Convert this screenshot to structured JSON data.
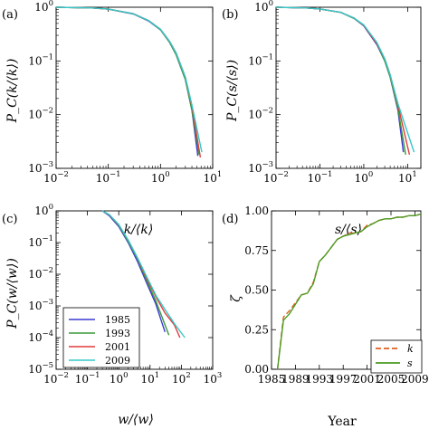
{
  "panels": [
    {
      "label": "(a)",
      "ylabel": "P_C(k/⟨k⟩)",
      "xlabel": "k/⟨k⟩"
    },
    {
      "label": "(b)",
      "ylabel": "P_C(s/⟨s⟩)",
      "xlabel": "s/⟨s⟩"
    },
    {
      "label": "(c)",
      "ylabel": "P_C(w/⟨w⟩)",
      "xlabel": "w/⟨w⟩"
    },
    {
      "label": "(d)",
      "ylabel": "ζ",
      "xlabel": "Year"
    }
  ],
  "legend_c": [
    "1985",
    "1993",
    "2001",
    "2009"
  ],
  "legend_d": [
    "k",
    "s"
  ],
  "colors": {
    "1985": "#3a3ad4",
    "1993": "#3a9a3a",
    "2001": "#e03c3c",
    "2009": "#35c8c8",
    "k": "#e06020",
    "s": "#4a9a20"
  },
  "chart_data": [
    {
      "type": "line",
      "panel": "(a)",
      "xscale": "log",
      "yscale": "log",
      "xlim": [
        0.01,
        10
      ],
      "ylim": [
        0.001,
        1
      ],
      "xticks": [
        "10^-2",
        "10^-1",
        "10^0",
        "10^1"
      ],
      "yticks": [
        "10^-3",
        "10^-2",
        "10^-1",
        "10^0"
      ],
      "series": [
        {
          "name": "1985",
          "x": [
            0.01,
            0.05,
            0.1,
            0.3,
            0.6,
            1,
            1.5,
            2,
            3,
            4,
            5.2
          ],
          "y": [
            1,
            0.97,
            0.92,
            0.75,
            0.55,
            0.38,
            0.22,
            0.13,
            0.045,
            0.012,
            0.0017
          ]
        },
        {
          "name": "1993",
          "x": [
            0.01,
            0.05,
            0.1,
            0.3,
            0.6,
            1,
            1.5,
            2,
            3,
            4,
            5.5
          ],
          "y": [
            1,
            0.97,
            0.92,
            0.76,
            0.56,
            0.38,
            0.22,
            0.13,
            0.045,
            0.012,
            0.0018
          ]
        },
        {
          "name": "2001",
          "x": [
            0.01,
            0.05,
            0.1,
            0.3,
            0.6,
            1,
            1.5,
            2,
            3,
            4,
            5.8
          ],
          "y": [
            1,
            0.97,
            0.92,
            0.76,
            0.56,
            0.39,
            0.23,
            0.14,
            0.05,
            0.014,
            0.0016
          ]
        },
        {
          "name": "2009",
          "x": [
            0.01,
            0.05,
            0.1,
            0.3,
            0.6,
            1,
            1.5,
            2,
            3,
            4,
            6.2
          ],
          "y": [
            1,
            0.97,
            0.92,
            0.76,
            0.56,
            0.39,
            0.23,
            0.14,
            0.05,
            0.015,
            0.002
          ]
        }
      ]
    },
    {
      "type": "line",
      "panel": "(b)",
      "xscale": "log",
      "yscale": "log",
      "xlim": [
        0.01,
        20
      ],
      "ylim": [
        0.001,
        1
      ],
      "xticks": [
        "10^-2",
        "10^-1",
        "10^0",
        "10^1"
      ],
      "yticks": [
        "10^-3",
        "10^-2",
        "10^-1",
        "10^0"
      ],
      "series": [
        {
          "name": "1985",
          "x": [
            0.01,
            0.05,
            0.1,
            0.3,
            0.6,
            1,
            2,
            3,
            4,
            6,
            8
          ],
          "y": [
            1,
            0.97,
            0.93,
            0.8,
            0.62,
            0.45,
            0.2,
            0.1,
            0.05,
            0.012,
            0.002
          ]
        },
        {
          "name": "1993",
          "x": [
            0.01,
            0.05,
            0.1,
            0.3,
            0.6,
            1,
            2,
            3,
            4,
            6,
            9
          ],
          "y": [
            1,
            0.97,
            0.93,
            0.8,
            0.62,
            0.46,
            0.21,
            0.1,
            0.05,
            0.013,
            0.0018
          ]
        },
        {
          "name": "2001",
          "x": [
            0.01,
            0.05,
            0.1,
            0.3,
            0.6,
            1,
            2,
            3,
            4,
            6,
            11
          ],
          "y": [
            1,
            0.97,
            0.93,
            0.8,
            0.63,
            0.46,
            0.21,
            0.11,
            0.055,
            0.015,
            0.0018
          ]
        },
        {
          "name": "2009",
          "x": [
            0.01,
            0.05,
            0.1,
            0.3,
            0.6,
            1,
            2,
            3,
            4,
            6,
            14
          ],
          "y": [
            1,
            0.97,
            0.93,
            0.8,
            0.63,
            0.47,
            0.22,
            0.11,
            0.055,
            0.016,
            0.002
          ]
        }
      ]
    },
    {
      "type": "line",
      "panel": "(c)",
      "xscale": "log",
      "yscale": "log",
      "xlim": [
        0.01,
        1000
      ],
      "ylim": [
        1e-05,
        1
      ],
      "xticks": [
        "10^-2",
        "10^-1",
        "10^0",
        "10^1",
        "10^2",
        "10^3"
      ],
      "yticks": [
        "10^-5",
        "10^-4",
        "10^-3",
        "10^-2",
        "10^-1",
        "10^0"
      ],
      "series": [
        {
          "name": "1985",
          "x": [
            0.3,
            0.5,
            1,
            2,
            4,
            8,
            15,
            30
          ],
          "y": [
            1,
            0.7,
            0.32,
            0.1,
            0.025,
            0.005,
            0.0012,
            0.00015
          ]
        },
        {
          "name": "1993",
          "x": [
            0.3,
            0.5,
            1,
            2,
            4,
            8,
            15,
            25,
            40
          ],
          "y": [
            1,
            0.75,
            0.35,
            0.11,
            0.03,
            0.006,
            0.0015,
            0.0004,
            0.00012
          ]
        },
        {
          "name": "2001",
          "x": [
            0.3,
            0.5,
            1,
            2,
            4,
            8,
            16,
            30,
            60,
            90
          ],
          "y": [
            1,
            0.75,
            0.36,
            0.12,
            0.032,
            0.007,
            0.0018,
            0.0006,
            0.00025,
            0.0001
          ]
        },
        {
          "name": "2009",
          "x": [
            0.3,
            0.5,
            1,
            2,
            4,
            8,
            16,
            32,
            64,
            130
          ],
          "y": [
            1,
            0.76,
            0.37,
            0.12,
            0.033,
            0.008,
            0.002,
            0.0007,
            0.00025,
            0.0001
          ]
        }
      ]
    },
    {
      "type": "line",
      "panel": "(d)",
      "xlim": [
        1985,
        2010
      ],
      "ylim": [
        0,
        1
      ],
      "xticks": [
        "1985",
        "1989",
        "1993",
        "1997",
        "2001",
        "2005",
        "2009"
      ],
      "yticks": [
        "0.00",
        "0.25",
        "0.50",
        "0.75",
        "1.00"
      ],
      "series": [
        {
          "name": "k",
          "x": [
            1986,
            1987,
            1988,
            1989,
            1990,
            1991,
            1992,
            1993,
            1994,
            1995,
            1996,
            1997,
            1998,
            1999,
            2000,
            2001,
            2002,
            2003,
            2004,
            2005,
            2006,
            2007,
            2008,
            2009,
            2010
          ],
          "y": [
            0.0,
            0.33,
            0.37,
            0.42,
            0.47,
            0.48,
            0.55,
            0.68,
            0.72,
            0.77,
            0.82,
            0.84,
            0.86,
            0.86,
            0.87,
            0.91,
            0.92,
            0.94,
            0.95,
            0.95,
            0.96,
            0.96,
            0.97,
            0.97,
            0.98
          ]
        },
        {
          "name": "s",
          "x": [
            1986,
            1987,
            1988,
            1989,
            1990,
            1991,
            1992,
            1993,
            1994,
            1995,
            1996,
            1997,
            1998,
            1999,
            2000,
            2001,
            2002,
            2003,
            2004,
            2005,
            2006,
            2007,
            2008,
            2009,
            2010
          ],
          "y": [
            0.0,
            0.31,
            0.35,
            0.41,
            0.47,
            0.48,
            0.54,
            0.68,
            0.72,
            0.77,
            0.82,
            0.84,
            0.85,
            0.86,
            0.87,
            0.9,
            0.92,
            0.94,
            0.95,
            0.95,
            0.96,
            0.96,
            0.97,
            0.97,
            0.98
          ]
        }
      ]
    }
  ]
}
